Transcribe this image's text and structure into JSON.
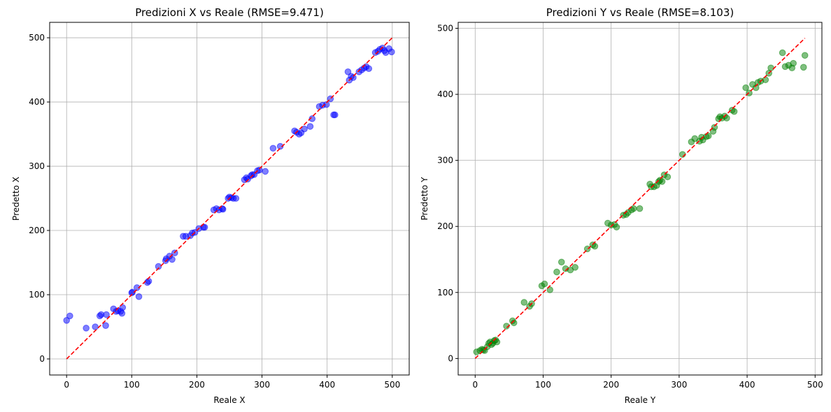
{
  "chart_data": [
    {
      "type": "scatter",
      "title": "Predizioni X vs Reale (RMSE=9.471)",
      "xlabel": "Reale X",
      "ylabel": "Predetto X",
      "xlim": [
        -26,
        526
      ],
      "ylim": [
        -25,
        524
      ],
      "xticks": [
        0,
        100,
        200,
        300,
        400,
        500
      ],
      "yticks": [
        0,
        100,
        200,
        300,
        400,
        500
      ],
      "grid": true,
      "point_color": "#0000ff",
      "point_alpha": 0.5,
      "ideal_line": {
        "x": [
          0,
          500
        ],
        "y": [
          0,
          500
        ],
        "color": "#ff0000",
        "style": "dashed"
      },
      "series": [
        {
          "x": [
            0,
            5,
            30,
            44,
            51,
            53,
            60,
            61,
            72,
            76,
            79,
            83,
            85,
            86,
            100,
            101,
            108,
            111,
            124,
            126,
            141,
            152,
            153,
            158,
            162,
            166,
            179,
            183,
            190,
            193,
            197,
            203,
            210,
            212,
            226,
            230,
            234,
            239,
            240,
            248,
            250,
            253,
            256,
            260,
            273,
            276,
            278,
            283,
            285,
            288,
            293,
            296,
            305,
            317,
            328,
            350,
            353,
            357,
            360,
            365,
            374,
            377,
            388,
            393,
            399,
            405,
            410,
            412,
            432,
            434,
            437,
            440,
            449,
            453,
            457,
            460,
            464,
            474,
            478,
            481,
            485,
            488,
            490,
            495,
            499
          ],
          "y": [
            60,
            67,
            48,
            50,
            67,
            69,
            52,
            69,
            78,
            74,
            75,
            74,
            71,
            80,
            103,
            104,
            111,
            97,
            119,
            121,
            144,
            153,
            156,
            160,
            155,
            165,
            191,
            191,
            192,
            196,
            197,
            203,
            205,
            205,
            232,
            234,
            232,
            234,
            233,
            250,
            252,
            251,
            250,
            250,
            279,
            282,
            280,
            285,
            287,
            287,
            293,
            294,
            292,
            328,
            331,
            355,
            353,
            350,
            352,
            358,
            362,
            374,
            393,
            395,
            396,
            405,
            380,
            380,
            447,
            434,
            440,
            438,
            447,
            450,
            453,
            455,
            452,
            477,
            479,
            482,
            484,
            480,
            477,
            483,
            478
          ]
        }
      ]
    },
    {
      "type": "scatter",
      "title": "Predizioni Y vs Reale (RMSE=8.103)",
      "xlabel": "Reale Y",
      "ylabel": "Predetto Y",
      "xlim": [
        -25,
        510
      ],
      "ylim": [
        -25,
        509
      ],
      "xticks": [
        0,
        100,
        200,
        300,
        400,
        500
      ],
      "yticks": [
        0,
        100,
        200,
        300,
        400,
        500
      ],
      "grid": true,
      "point_color": "#008000",
      "point_alpha": 0.5,
      "ideal_line": {
        "x": [
          0,
          485
        ],
        "y": [
          0,
          485
        ],
        "color": "#ff0000",
        "style": "dashed"
      },
      "series": [
        {
          "x": [
            2,
            7,
            10,
            12,
            14,
            18,
            20,
            22,
            24,
            26,
            28,
            30,
            32,
            46,
            55,
            57,
            72,
            80,
            83,
            98,
            102,
            110,
            120,
            127,
            133,
            140,
            147,
            165,
            173,
            176,
            195,
            200,
            205,
            208,
            218,
            222,
            225,
            230,
            233,
            242,
            257,
            259,
            263,
            267,
            270,
            272,
            275,
            278,
            283,
            305,
            318,
            323,
            330,
            333,
            335,
            340,
            343,
            350,
            352,
            358,
            360,
            363,
            367,
            370,
            378,
            381,
            398,
            403,
            408,
            413,
            416,
            420,
            427,
            432,
            435,
            452,
            456,
            461,
            466,
            468,
            483,
            485
          ],
          "y": [
            10,
            12,
            14,
            13,
            12,
            18,
            23,
            25,
            21,
            23,
            27,
            28,
            25,
            49,
            57,
            54,
            85,
            79,
            83,
            110,
            113,
            104,
            131,
            146,
            136,
            134,
            138,
            166,
            172,
            170,
            205,
            202,
            203,
            199,
            217,
            218,
            221,
            225,
            227,
            227,
            264,
            260,
            260,
            262,
            268,
            270,
            268,
            278,
            275,
            309,
            328,
            333,
            329,
            335,
            331,
            336,
            337,
            344,
            350,
            363,
            366,
            364,
            367,
            364,
            376,
            374,
            410,
            402,
            415,
            410,
            418,
            420,
            422,
            432,
            440,
            463,
            442,
            444,
            440,
            447,
            441,
            459
          ]
        }
      ]
    }
  ]
}
